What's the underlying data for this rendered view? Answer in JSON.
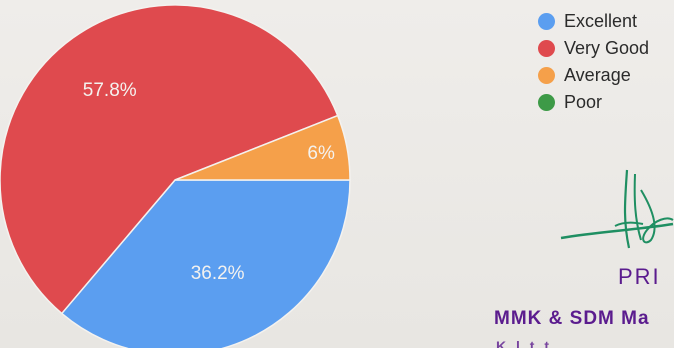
{
  "chart_data": {
    "type": "pie",
    "categories": [
      "Excellent",
      "Very Good",
      "Average",
      "Poor"
    ],
    "values": [
      36.2,
      57.8,
      6,
      0
    ],
    "value_labels": [
      "36.2%",
      "57.8%",
      "6%",
      ""
    ],
    "colors": [
      "#5b9ef0",
      "#df4a4e",
      "#f5a04a",
      "#3d9a47"
    ],
    "start_angle_deg": 0,
    "direction": "clockwise",
    "legend_position": "right",
    "title": ""
  },
  "stamp": {
    "line1": "PRI",
    "line2": "MMK & SDM Ma",
    "line3": "K l   t   t"
  }
}
